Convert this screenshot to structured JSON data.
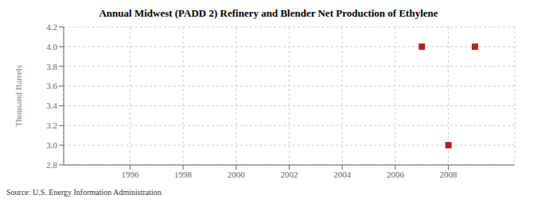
{
  "chart_data": {
    "type": "scatter",
    "title": "Annual Midwest (PADD 2) Refinery and Blender Net Production of Ethylene",
    "ylabel": "Thousand Barrels",
    "annotations": [
      "Source: U.S. Energy Information Administration"
    ],
    "x": [
      2007,
      2008,
      2009
    ],
    "values": [
      4.0,
      3.0,
      4.0
    ],
    "color": "#b22222",
    "marker": "square",
    "xlim": [
      1993.5,
      2010.5
    ],
    "ylim": [
      2.8,
      4.2
    ],
    "xticks": [
      1996,
      1998,
      2000,
      2002,
      2004,
      2006,
      2008
    ],
    "yticks": [
      2.8,
      {
        "value": 3,
        "label": "3.0"
      },
      3.2,
      3.4,
      3.6,
      3.8,
      {
        "value": 4,
        "label": "4.0"
      },
      4.2
    ],
    "grid": true
  }
}
